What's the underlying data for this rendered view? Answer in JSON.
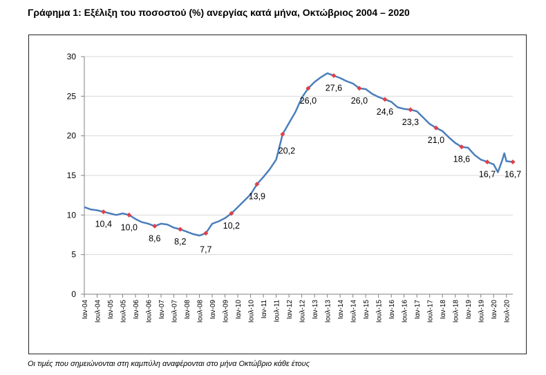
{
  "title": "Γράφημα 1: Εξέλιξη του ποσοστού (%) ανεργίας κατά μήνα, Οκτώβριος 2004 – 2020",
  "footnote": "Οι τιμές που σημειώνονται στη καμπύλη αναφέρονται στο μήνα Οκτώβριο κάθε έτους",
  "colors": {
    "line": "#4a7ebb",
    "marker": "#e0404a",
    "grid": "#d9d9d9"
  },
  "chart_data": {
    "type": "line",
    "title": "Γράφημα 1: Εξέλιξη του ποσοστού (%) ανεργίας κατά μήνα, Οκτώβριος 2004 – 2020",
    "xlabel": "",
    "ylabel": "",
    "ylim": [
      0,
      30
    ],
    "yticks": [
      0,
      5,
      10,
      15,
      20,
      25,
      30
    ],
    "grid": "horizontal",
    "legend": "none",
    "x_range": [
      "Ιαν-04",
      "Οκτ-20"
    ],
    "x_tick_labels": [
      "Ιαν-04",
      "Ιουλ-04",
      "Ιαν-05",
      "Ιουλ-05",
      "Ιαν-06",
      "Ιουλ-06",
      "Ιαν-07",
      "Ιουλ-07",
      "Ιαν-08",
      "Ιουλ-08",
      "Ιαν-09",
      "Ιουλ-09",
      "Ιαν-10",
      "Ιουλ-10",
      "Ιαν-11",
      "Ιουλ-11",
      "Ιαν-12",
      "Ιουλ-12",
      "Ιαν-13",
      "Ιουλ-13",
      "Ιαν-14",
      "Ιουλ-14",
      "Ιαν-15",
      "Ιουλ-15",
      "Ιαν-16",
      "Ιουλ-16",
      "Ιαν-17",
      "Ιουλ-17",
      "Ιαν-18",
      "Ιουλ-18",
      "Ιαν-19",
      "Ιουλ-19",
      "Ιαν-20",
      "Ιουλ-20"
    ],
    "series": [
      {
        "points": [
          [
            "Ιαν-04",
            11.0
          ],
          [
            "Απρ-04",
            10.7
          ],
          [
            "Ιουλ-04",
            10.6
          ],
          [
            "Οκτ-04",
            10.4
          ],
          [
            "Ιαν-05",
            10.2
          ],
          [
            "Απρ-05",
            10.0
          ],
          [
            "Ιουλ-05",
            10.2
          ],
          [
            "Οκτ-05",
            10.0
          ],
          [
            "Ιαν-06",
            9.5
          ],
          [
            "Απρ-06",
            9.1
          ],
          [
            "Ιουλ-06",
            8.9
          ],
          [
            "Οκτ-06",
            8.6
          ],
          [
            "Ιαν-07",
            8.9
          ],
          [
            "Απρ-07",
            8.8
          ],
          [
            "Ιουλ-07",
            8.4
          ],
          [
            "Οκτ-07",
            8.2
          ],
          [
            "Ιαν-08",
            7.9
          ],
          [
            "Απρ-08",
            7.6
          ],
          [
            "Ιουλ-08",
            7.4
          ],
          [
            "Οκτ-08",
            7.7
          ],
          [
            "Ιαν-09",
            8.9
          ],
          [
            "Απρ-09",
            9.2
          ],
          [
            "Ιουλ-09",
            9.6
          ],
          [
            "Οκτ-09",
            10.2
          ],
          [
            "Ιαν-10",
            11.0
          ],
          [
            "Απρ-10",
            11.8
          ],
          [
            "Ιουλ-10",
            12.6
          ],
          [
            "Οκτ-10",
            13.9
          ],
          [
            "Ιαν-11",
            14.8
          ],
          [
            "Απρ-11",
            15.8
          ],
          [
            "Ιουλ-11",
            17.0
          ],
          [
            "Οκτ-11",
            20.2
          ],
          [
            "Ιαν-12",
            21.6
          ],
          [
            "Απρ-12",
            23.0
          ],
          [
            "Ιουλ-12",
            24.8
          ],
          [
            "Οκτ-12",
            26.0
          ],
          [
            "Ιαν-13",
            26.8
          ],
          [
            "Απρ-13",
            27.4
          ],
          [
            "Ιουλ-13",
            27.9
          ],
          [
            "Οκτ-13",
            27.6
          ],
          [
            "Ιαν-14",
            27.3
          ],
          [
            "Απρ-14",
            26.9
          ],
          [
            "Ιουλ-14",
            26.6
          ],
          [
            "Οκτ-14",
            26.0
          ],
          [
            "Ιαν-15",
            25.9
          ],
          [
            "Απρ-15",
            25.3
          ],
          [
            "Ιουλ-15",
            24.9
          ],
          [
            "Οκτ-15",
            24.6
          ],
          [
            "Ιαν-16",
            24.3
          ],
          [
            "Απρ-16",
            23.6
          ],
          [
            "Ιουλ-16",
            23.4
          ],
          [
            "Οκτ-16",
            23.3
          ],
          [
            "Ιαν-17",
            23.1
          ],
          [
            "Απρ-17",
            22.3
          ],
          [
            "Ιουλ-17",
            21.5
          ],
          [
            "Οκτ-17",
            21.0
          ],
          [
            "Ιαν-18",
            20.6
          ],
          [
            "Απρ-18",
            19.8
          ],
          [
            "Ιουλ-18",
            19.1
          ],
          [
            "Οκτ-18",
            18.6
          ],
          [
            "Ιαν-19",
            18.5
          ],
          [
            "Απρ-19",
            17.6
          ],
          [
            "Ιουλ-19",
            17.0
          ],
          [
            "Οκτ-19",
            16.7
          ],
          [
            "Ιαν-20",
            16.4
          ],
          [
            "Μαρ-20",
            15.4
          ],
          [
            "Μαϊ-20",
            16.9
          ],
          [
            "Ιουν-20",
            17.8
          ],
          [
            "Ιουλ-20",
            16.8
          ],
          [
            "Οκτ-20",
            16.7
          ]
        ]
      }
    ],
    "october_labels": [
      {
        "x": "Οκτ-04",
        "value": "10,4"
      },
      {
        "x": "Οκτ-05",
        "value": "10,0"
      },
      {
        "x": "Οκτ-06",
        "value": "8,6"
      },
      {
        "x": "Οκτ-07",
        "value": "8,2"
      },
      {
        "x": "Οκτ-08",
        "value": "7,7"
      },
      {
        "x": "Οκτ-09",
        "value": "10,2"
      },
      {
        "x": "Οκτ-10",
        "value": "13,9"
      },
      {
        "x": "Οκτ-11",
        "value": "20,2"
      },
      {
        "x": "Οκτ-12",
        "value": "26,0"
      },
      {
        "x": "Οκτ-13",
        "value": "27,6"
      },
      {
        "x": "Οκτ-14",
        "value": "26,0"
      },
      {
        "x": "Οκτ-15",
        "value": "24,6"
      },
      {
        "x": "Οκτ-16",
        "value": "23,3"
      },
      {
        "x": "Οκτ-17",
        "value": "21,0"
      },
      {
        "x": "Οκτ-18",
        "value": "18,6"
      },
      {
        "x": "Οκτ-19",
        "value": "16,7"
      },
      {
        "x": "Οκτ-20",
        "value": "16,7"
      }
    ]
  }
}
